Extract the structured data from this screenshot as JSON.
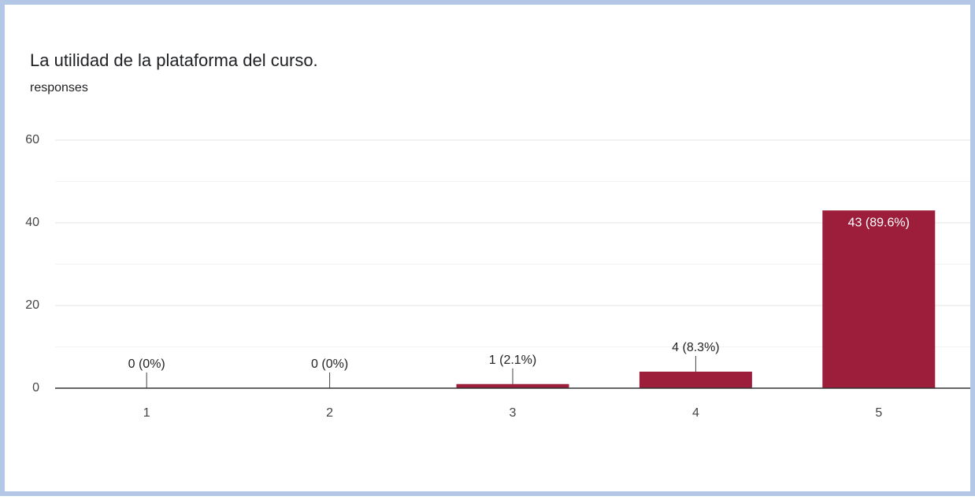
{
  "chart_data": {
    "type": "bar",
    "title": "La utilidad de la plataforma del curso.",
    "subtitle": "responses",
    "categories": [
      "1",
      "2",
      "3",
      "4",
      "5"
    ],
    "values": [
      0,
      0,
      1,
      4,
      43
    ],
    "value_labels": [
      "0 (0%)",
      "0 (0%)",
      "1 (2.1%)",
      "4 (8.3%)",
      "43 (89.6%)"
    ],
    "color": "#9c1e3b",
    "ylim": [
      0,
      60
    ],
    "yticks": [
      0,
      20,
      40,
      60
    ],
    "minor_yticks": [
      10,
      30,
      50
    ],
    "grid": true
  }
}
